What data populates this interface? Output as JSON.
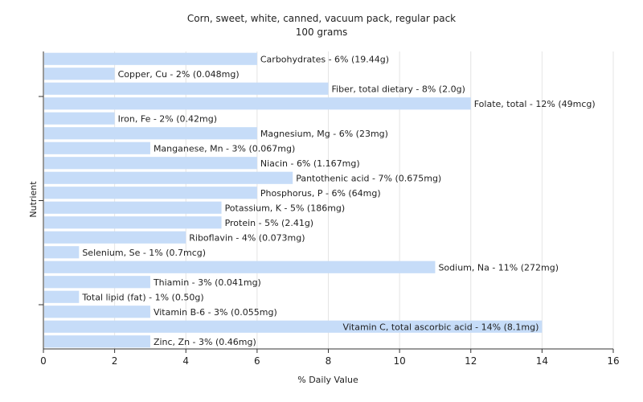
{
  "chart_data": {
    "type": "bar",
    "orientation": "horizontal",
    "title": "Corn, sweet, white, canned, vacuum pack, regular pack",
    "subtitle": "100 grams",
    "xlabel": "% Daily Value",
    "ylabel": "Nutrient",
    "xlim": [
      0,
      16
    ],
    "xticks": [
      0,
      2,
      4,
      6,
      8,
      10,
      12,
      14,
      16
    ],
    "grid": true,
    "bar_color": "#c6dcf8",
    "categories": [
      "Carbohydrates",
      "Copper, Cu",
      "Fiber, total dietary",
      "Folate, total",
      "Iron, Fe",
      "Magnesium, Mg",
      "Manganese, Mn",
      "Niacin",
      "Pantothenic acid",
      "Phosphorus, P",
      "Potassium, K",
      "Protein",
      "Riboflavin",
      "Selenium, Se",
      "Sodium, Na",
      "Thiamin",
      "Total lipid (fat)",
      "Vitamin B-6",
      "Vitamin C, total ascorbic acid",
      "Zinc, Zn"
    ],
    "values": [
      6,
      2,
      8,
      12,
      2,
      6,
      3,
      6,
      7,
      6,
      5,
      5,
      4,
      1,
      11,
      3,
      1,
      3,
      14,
      3
    ],
    "labels": [
      "Carbohydrates - 6% (19.44g)",
      "Copper, Cu - 2% (0.048mg)",
      "Fiber, total dietary - 8% (2.0g)",
      "Folate, total - 12% (49mcg)",
      "Iron, Fe - 2% (0.42mg)",
      "Magnesium, Mg - 6% (23mg)",
      "Manganese, Mn - 3% (0.067mg)",
      "Niacin - 6% (1.167mg)",
      "Pantothenic acid - 7% (0.675mg)",
      "Phosphorus, P - 6% (64mg)",
      "Potassium, K - 5% (186mg)",
      "Protein - 5% (2.41g)",
      "Riboflavin - 4% (0.073mg)",
      "Selenium, Se - 1% (0.7mcg)",
      "Sodium, Na - 11% (272mg)",
      "Thiamin - 3% (0.041mg)",
      "Total lipid (fat) - 1% (0.50g)",
      "Vitamin B-6 - 3% (0.055mg)",
      "Vitamin C, total ascorbic acid - 14% (8.1mg)",
      "Zinc, Zn - 3% (0.46mg)"
    ]
  }
}
